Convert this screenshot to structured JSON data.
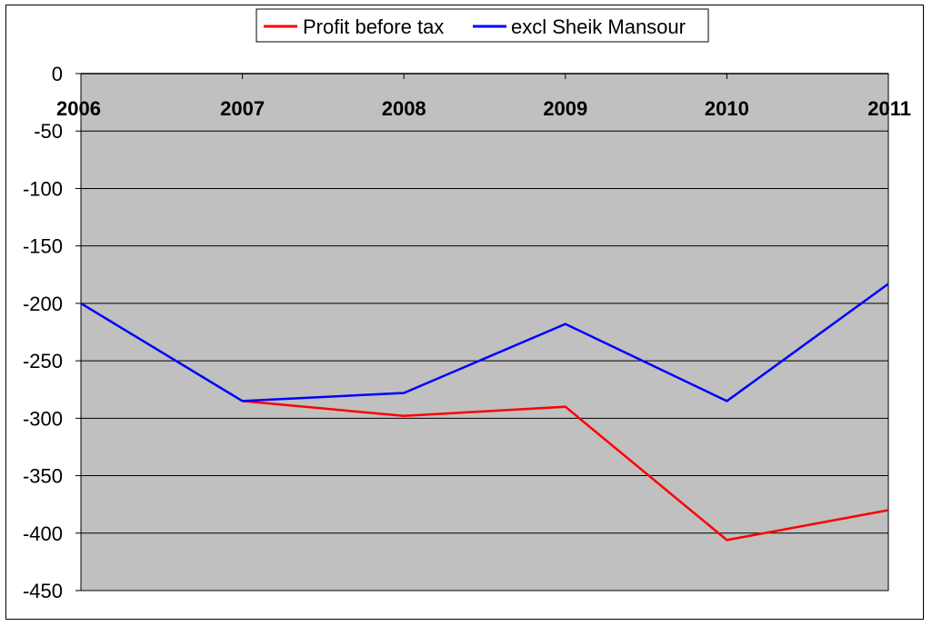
{
  "chart_data": {
    "type": "line",
    "title": "",
    "xlabel": "",
    "ylabel": "",
    "categories": [
      "2006",
      "2007",
      "2008",
      "2009",
      "2010",
      "2011"
    ],
    "ylim": [
      -450,
      0
    ],
    "yticks": [
      0,
      -50,
      -100,
      -150,
      -200,
      -250,
      -300,
      -350,
      -400,
      -450
    ],
    "ytick_labels": [
      "0",
      "-50",
      "-100",
      "-150",
      "-200",
      "-250",
      "-300",
      "-350",
      "-400",
      "-450"
    ],
    "x_axis_position": "top",
    "grid": true,
    "plot_background": "#c0c0c0",
    "legend_position": "top-center",
    "series": [
      {
        "name": "Profit before tax",
        "color": "#ff0000",
        "values": [
          null,
          -285,
          -298,
          -290,
          -406,
          -380
        ]
      },
      {
        "name": "excl Sheik Mansour",
        "color": "#0000ff",
        "values": [
          -200,
          -285,
          -278,
          -218,
          -285,
          -183
        ]
      }
    ]
  }
}
